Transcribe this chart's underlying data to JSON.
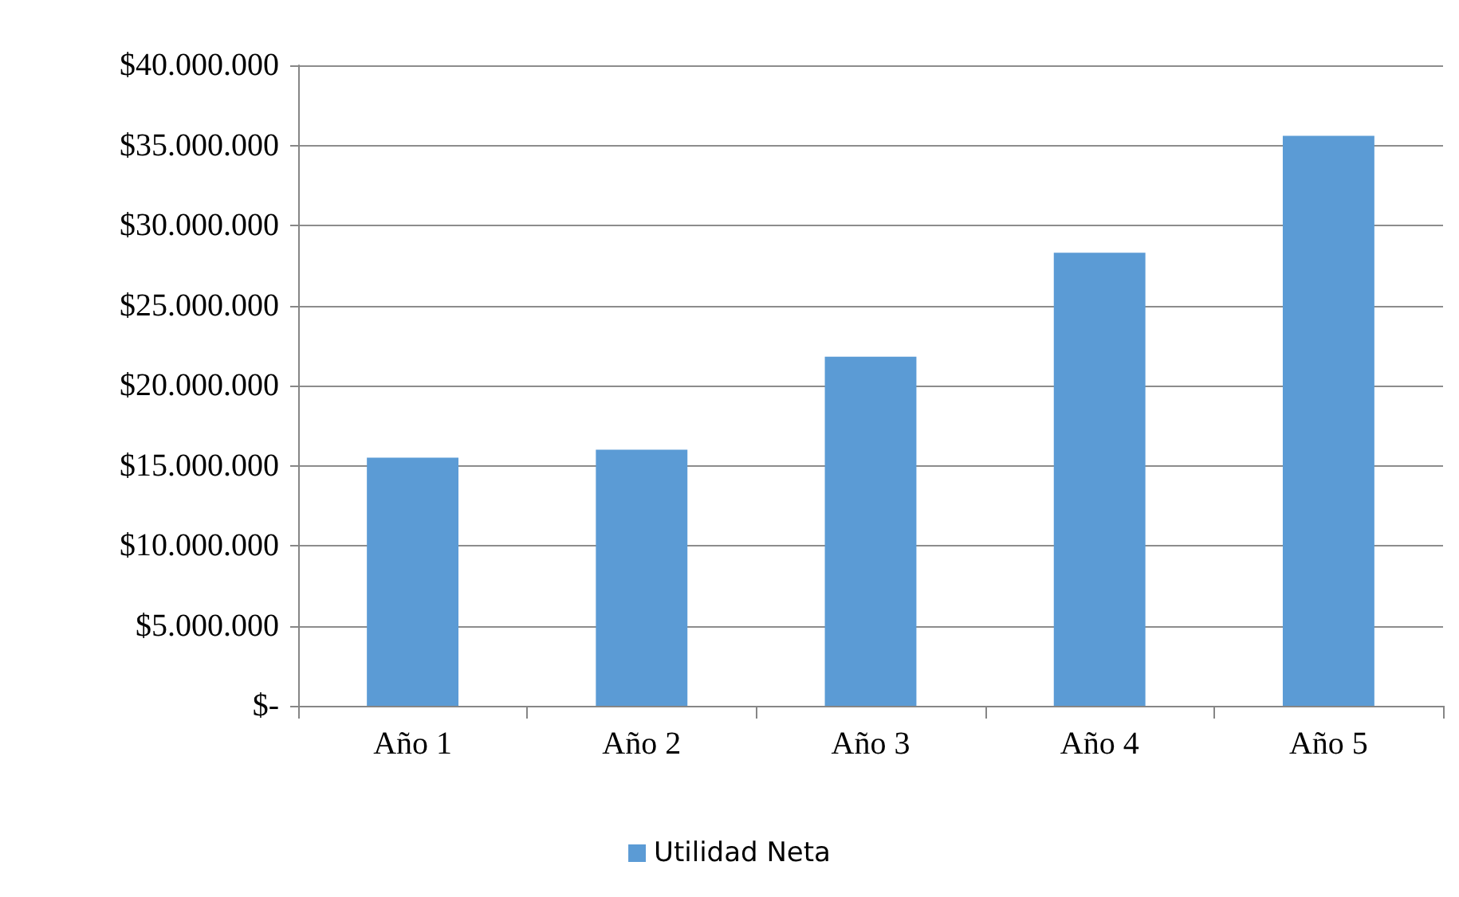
{
  "chart_data": {
    "type": "bar",
    "categories": [
      "Año 1",
      "Año 2",
      "Año 3",
      "Año 4",
      "Año 5"
    ],
    "series": [
      {
        "name": "Utilidad Neta",
        "color": "#5b9bd5",
        "values": [
          15500000,
          16000000,
          21800000,
          28300000,
          35600000
        ]
      }
    ],
    "ylim": [
      0,
      40000000
    ],
    "yticks": [
      {
        "value": 0,
        "label": "$-"
      },
      {
        "value": 5000000,
        "label": "$5.000.000"
      },
      {
        "value": 10000000,
        "label": "$10.000.000"
      },
      {
        "value": 15000000,
        "label": "$15.000.000"
      },
      {
        "value": 20000000,
        "label": "$20.000.000"
      },
      {
        "value": 25000000,
        "label": "$25.000.000"
      },
      {
        "value": 30000000,
        "label": "$30.000.000"
      },
      {
        "value": 35000000,
        "label": "$35.000.000"
      },
      {
        "value": 40000000,
        "label": "$40.000.000"
      }
    ],
    "grid": "y",
    "legend": "bottom"
  }
}
